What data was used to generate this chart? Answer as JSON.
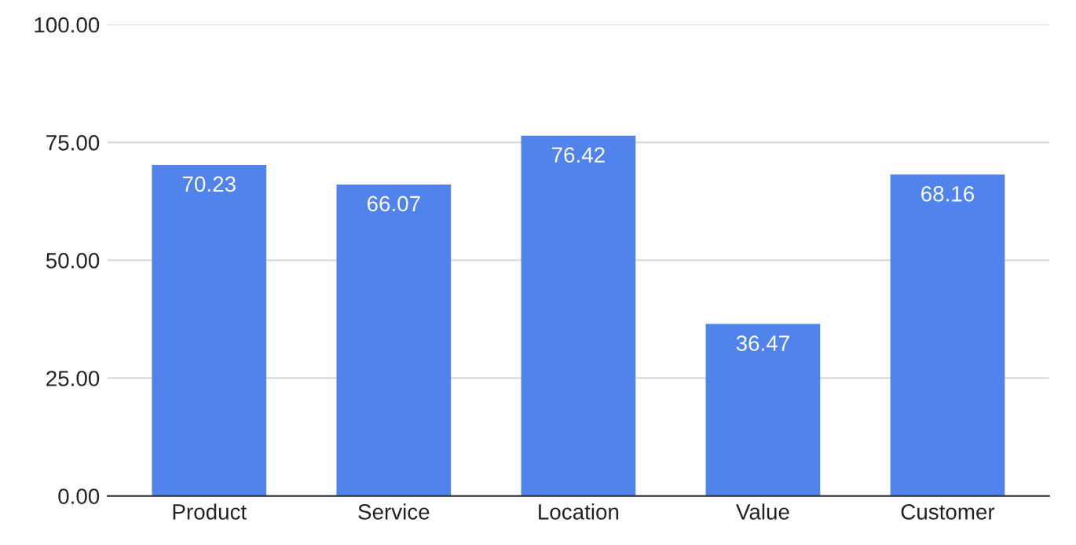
{
  "chart_data": {
    "type": "bar",
    "categories": [
      "Product",
      "Service",
      "Location",
      "Value",
      "Customer"
    ],
    "values": [
      70.23,
      66.07,
      76.42,
      36.47,
      68.16
    ],
    "color": "#5083ec",
    "ylim": [
      0,
      100
    ],
    "yticks": [
      {
        "value": 0,
        "label": "0.00"
      },
      {
        "value": 25,
        "label": "25.00"
      },
      {
        "value": 50,
        "label": "50.00"
      },
      {
        "value": 75,
        "label": "75.00"
      },
      {
        "value": 100,
        "label": "100.00"
      }
    ],
    "grid": "y",
    "data_labels": true
  }
}
